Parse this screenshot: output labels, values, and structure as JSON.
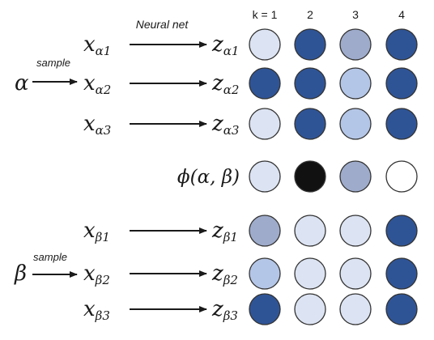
{
  "labels": {
    "neural_net": "Neural net",
    "sample_alpha": "sample",
    "sample_beta": "sample",
    "alpha_symbol": "α",
    "beta_symbol": "β",
    "phi": "ϕ(α, β)"
  },
  "k_header": [
    "k = 1",
    "2",
    "3",
    "4"
  ],
  "alpha_rows": [
    {
      "x_base": "x",
      "x_sub": "α1",
      "z_base": "z",
      "z_sub": "α1",
      "circles": [
        "pale",
        "dark",
        "mid",
        "dark"
      ]
    },
    {
      "x_base": "x",
      "x_sub": "α2",
      "z_base": "z",
      "z_sub": "α2",
      "circles": [
        "dark",
        "dark",
        "light",
        "dark"
      ]
    },
    {
      "x_base": "x",
      "x_sub": "α3",
      "z_base": "z",
      "z_sub": "α3",
      "circles": [
        "pale",
        "dark",
        "light",
        "dark"
      ]
    }
  ],
  "phi_row": {
    "circles": [
      "pale",
      "black",
      "mid",
      "white"
    ]
  },
  "beta_rows": [
    {
      "x_base": "x",
      "x_sub": "β1",
      "z_base": "z",
      "z_sub": "β1",
      "circles": [
        "mid",
        "pale",
        "pale",
        "dark"
      ]
    },
    {
      "x_base": "x",
      "x_sub": "β2",
      "z_base": "z",
      "z_sub": "β2",
      "circles": [
        "light",
        "pale",
        "pale",
        "dark"
      ]
    },
    {
      "x_base": "x",
      "x_sub": "β3",
      "z_base": "z",
      "z_sub": "β3",
      "circles": [
        "dark",
        "pale",
        "pale",
        "dark"
      ]
    }
  ],
  "colors": {
    "dark": "#2f5496",
    "mid": "#9eabcb",
    "light": "#b4c6e7",
    "pale": "#dce3f2",
    "black": "#111111",
    "white": "#ffffff",
    "outline": "#333333"
  }
}
